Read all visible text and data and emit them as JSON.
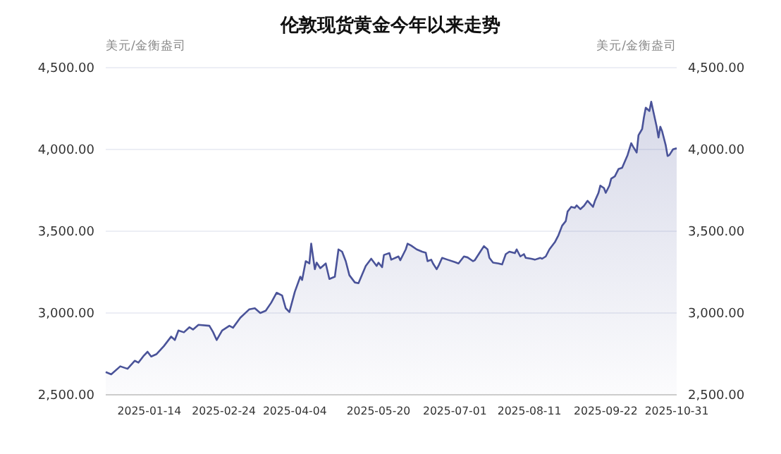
{
  "chart_data": {
    "type": "area",
    "title": "伦敦现货黄金今年以来走势",
    "ylabel": "美元/金衡盎司",
    "y2label": "美元/金衡盎司",
    "x": [
      "2024-12-21",
      "2024-12-24",
      "2024-12-29",
      "2025-01-02",
      "2025-01-06",
      "2025-01-08",
      "2025-01-11",
      "2025-01-13",
      "2025-01-15",
      "2025-01-18",
      "2025-01-22",
      "2025-01-26",
      "2025-01-28",
      "2025-01-30",
      "2025-02-02",
      "2025-02-05",
      "2025-02-07",
      "2025-02-10",
      "2025-02-16",
      "2025-02-18",
      "2025-02-20",
      "2025-02-23",
      "2025-02-27",
      "2025-03-01",
      "2025-03-05",
      "2025-03-10",
      "2025-03-13",
      "2025-03-16",
      "2025-03-19",
      "2025-03-22",
      "2025-03-25",
      "2025-03-28",
      "2025-03-30",
      "2025-04-01",
      "2025-04-04",
      "2025-04-07",
      "2025-04-08",
      "2025-04-10",
      "2025-04-12",
      "2025-04-13",
      "2025-04-15",
      "2025-04-16",
      "2025-04-18",
      "2025-04-21",
      "2025-04-23",
      "2025-04-26",
      "2025-04-28",
      "2025-04-30",
      "2025-05-02",
      "2025-05-04",
      "2025-05-07",
      "2025-05-09",
      "2025-05-13",
      "2025-05-16",
      "2025-05-19",
      "2025-05-20",
      "2025-05-22",
      "2025-05-23",
      "2025-05-26",
      "2025-05-27",
      "2025-05-31",
      "2025-06-01",
      "2025-06-04",
      "2025-06-05",
      "2025-06-07",
      "2025-06-10",
      "2025-06-13",
      "2025-06-15",
      "2025-06-16",
      "2025-06-18",
      "2025-06-19",
      "2025-06-21",
      "2025-06-22",
      "2025-06-24",
      "2025-06-27",
      "2025-07-01",
      "2025-07-03",
      "2025-07-06",
      "2025-07-08",
      "2025-07-11",
      "2025-07-12",
      "2025-07-15",
      "2025-07-17",
      "2025-07-19",
      "2025-07-20",
      "2025-07-22",
      "2025-07-25",
      "2025-07-27",
      "2025-07-29",
      "2025-07-31",
      "2025-08-03",
      "2025-08-04",
      "2025-08-06",
      "2025-08-08",
      "2025-08-09",
      "2025-08-12",
      "2025-08-14",
      "2025-08-17",
      "2025-08-18",
      "2025-08-20",
      "2025-08-22",
      "2025-08-25",
      "2025-08-27",
      "2025-08-29",
      "2025-08-31",
      "2025-09-01",
      "2025-09-03",
      "2025-09-05",
      "2025-09-06",
      "2025-09-08",
      "2025-09-10",
      "2025-09-12",
      "2025-09-15",
      "2025-09-16",
      "2025-09-18",
      "2025-09-19",
      "2025-09-21",
      "2025-09-22",
      "2025-09-24",
      "2025-09-25",
      "2025-09-27",
      "2025-09-29",
      "2025-10-01",
      "2025-10-02",
      "2025-10-04",
      "2025-10-06",
      "2025-10-07",
      "2025-10-09",
      "2025-10-10",
      "2025-10-12",
      "2025-10-13",
      "2025-10-14",
      "2025-10-16",
      "2025-10-17",
      "2025-10-18",
      "2025-10-20",
      "2025-10-21",
      "2025-10-22",
      "2025-10-23",
      "2025-10-25",
      "2025-10-26",
      "2025-10-27",
      "2025-10-29",
      "2025-10-31"
    ],
    "series": [
      {
        "color": "#4a5399",
        "values": [
          2639,
          2625,
          2674,
          2659,
          2708,
          2697,
          2740,
          2763,
          2734,
          2749,
          2798,
          2856,
          2835,
          2893,
          2882,
          2913,
          2899,
          2928,
          2922,
          2884,
          2835,
          2893,
          2922,
          2910,
          2971,
          3023,
          3029,
          3000,
          3014,
          3063,
          3124,
          3107,
          3029,
          3006,
          3130,
          3222,
          3202,
          3317,
          3303,
          3424,
          3268,
          3308,
          3274,
          3303,
          3208,
          3222,
          3389,
          3375,
          3317,
          3231,
          3187,
          3182,
          3288,
          3332,
          3288,
          3308,
          3280,
          3355,
          3366,
          3326,
          3346,
          3323,
          3389,
          3424,
          3412,
          3389,
          3375,
          3369,
          3317,
          3326,
          3303,
          3268,
          3288,
          3337,
          3326,
          3311,
          3303,
          3346,
          3340,
          3317,
          3323,
          3375,
          3409,
          3389,
          3337,
          3308,
          3303,
          3297,
          3360,
          3375,
          3366,
          3389,
          3346,
          3360,
          3337,
          3332,
          3326,
          3337,
          3332,
          3346,
          3389,
          3433,
          3476,
          3534,
          3562,
          3620,
          3649,
          3643,
          3658,
          3635,
          3655,
          3686,
          3649,
          3684,
          3735,
          3779,
          3764,
          3735,
          3779,
          3822,
          3836,
          3880,
          3888,
          3914,
          3966,
          4038,
          4018,
          3981,
          4087,
          4125,
          4197,
          4255,
          4235,
          4292,
          4240,
          4139,
          4073,
          4139,
          4111,
          4024,
          3960,
          3966,
          4001,
          4007
        ]
      }
    ],
    "xlim": [
      "2024-12-21",
      "2025-10-31"
    ],
    "xticks": [
      "2025-01-14",
      "2025-02-24",
      "2025-04-04",
      "2025-05-20",
      "2025-07-01",
      "2025-08-11",
      "2025-09-22",
      "2025-10-31"
    ],
    "ylim": [
      2500,
      4500
    ],
    "yticks": [
      {
        "value": 2500,
        "label": "2,500.00"
      },
      {
        "value": 3000,
        "label": "3,000.00"
      },
      {
        "value": 3500,
        "label": "3,500.00"
      },
      {
        "value": 4000,
        "label": "4,000.00"
      },
      {
        "value": 4500,
        "label": "4,500.00"
      }
    ],
    "y2lim": [
      2500,
      4500
    ],
    "y2ticks": [
      {
        "value": 2500,
        "label": "2,500.00"
      },
      {
        "value": 3000,
        "label": "3,000.00"
      },
      {
        "value": 3500,
        "label": "3,500.00"
      },
      {
        "value": 4000,
        "label": "4,000.00"
      },
      {
        "value": 4500,
        "label": "4,500.00"
      }
    ],
    "grid": "y"
  }
}
